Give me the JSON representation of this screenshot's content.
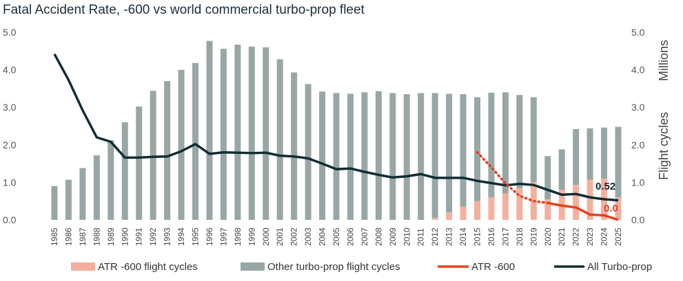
{
  "chart_data": {
    "type": "bar",
    "title": "Fatal Accident Rate, -600 vs world commercial turbo-prop fleet",
    "categories": [
      "1985",
      "1986",
      "1987",
      "1988",
      "1989",
      "1990",
      "1991",
      "1992",
      "1993",
      "1994",
      "1995",
      "1996",
      "1997",
      "1998",
      "1999",
      "2000",
      "2001",
      "2002",
      "2003",
      "2004",
      "2005",
      "2006",
      "2007",
      "2008",
      "2009",
      "2010",
      "2011",
      "2012",
      "2013",
      "2014",
      "2015",
      "2016",
      "2017",
      "2018",
      "2019",
      "2020",
      "2021",
      "2022",
      "2023",
      "2024",
      "2025"
    ],
    "ylim": [
      0,
      5
    ],
    "yticks": [
      "0.0",
      "1.0",
      "2.0",
      "3.0",
      "4.0",
      "5.0"
    ],
    "y2lim": [
      0,
      5
    ],
    "y2ticks": [
      "0.0",
      "1.0",
      "2.0",
      "3.0",
      "4.0",
      "5.0"
    ],
    "y2label_units": "Millions",
    "y2label": "Flight cycles",
    "series": [
      {
        "name": "ATR -600 flight cycles",
        "kind": "bar",
        "color": "#f4b09e",
        "values": [
          0,
          0,
          0,
          0,
          0,
          0,
          0,
          0,
          0,
          0,
          0,
          0,
          0,
          0,
          0,
          0,
          0,
          0,
          0,
          0,
          0,
          0,
          0,
          0,
          0,
          0,
          0,
          0.05,
          0.2,
          0.35,
          0.5,
          0.6,
          0.7,
          0.85,
          1.0,
          0.55,
          0.8,
          0.93,
          1.07,
          1.1,
          0.6
        ]
      },
      {
        "name": "Other turbo-prop flight cycles",
        "kind": "bar",
        "color": "#98a7a6",
        "values": [
          0.9,
          1.07,
          1.38,
          1.72,
          2.12,
          2.6,
          3.02,
          3.44,
          3.7,
          4.0,
          4.18,
          4.77,
          4.56,
          4.67,
          4.62,
          4.6,
          4.28,
          3.93,
          3.62,
          3.42,
          3.38,
          3.36,
          3.4,
          3.43,
          3.38,
          3.35,
          3.38,
          3.33,
          3.16,
          3.0,
          2.77,
          2.79,
          2.7,
          2.48,
          2.27,
          1.15,
          1.08,
          1.49,
          1.37,
          1.36,
          1.88
        ]
      },
      {
        "name": "ATR -600",
        "kind": "line",
        "color": "#e8401c",
        "dotted_values": {
          "2015": 1.8,
          "2016": 1.4,
          "2017": 0.97,
          "2018": 0.64,
          "2019": 0.5,
          "2020": 0.45
        },
        "solid_values": {
          "2020": 0.45,
          "2021": 0.38,
          "2022": 0.33,
          "2023": 0.14,
          "2024": 0.12,
          "2025": 0.0
        }
      },
      {
        "name": "All Turbo-prop",
        "kind": "line",
        "color": "#0f2d33",
        "values": [
          4.42,
          3.73,
          2.92,
          2.2,
          2.08,
          1.66,
          1.66,
          1.68,
          1.69,
          1.83,
          2.02,
          1.76,
          1.8,
          1.79,
          1.78,
          1.79,
          1.71,
          1.69,
          1.64,
          1.5,
          1.35,
          1.37,
          1.28,
          1.2,
          1.13,
          1.16,
          1.22,
          1.12,
          1.12,
          1.12,
          1.04,
          0.98,
          0.92,
          0.96,
          0.93,
          0.8,
          0.67,
          0.69,
          0.6,
          0.55,
          0.52
        ]
      }
    ],
    "annotations": [
      {
        "text": "0.52",
        "color": "#0f2d33"
      },
      {
        "text": "0.0",
        "color": "#e8401c"
      }
    ],
    "legend_position": "bottom",
    "grid": false
  }
}
